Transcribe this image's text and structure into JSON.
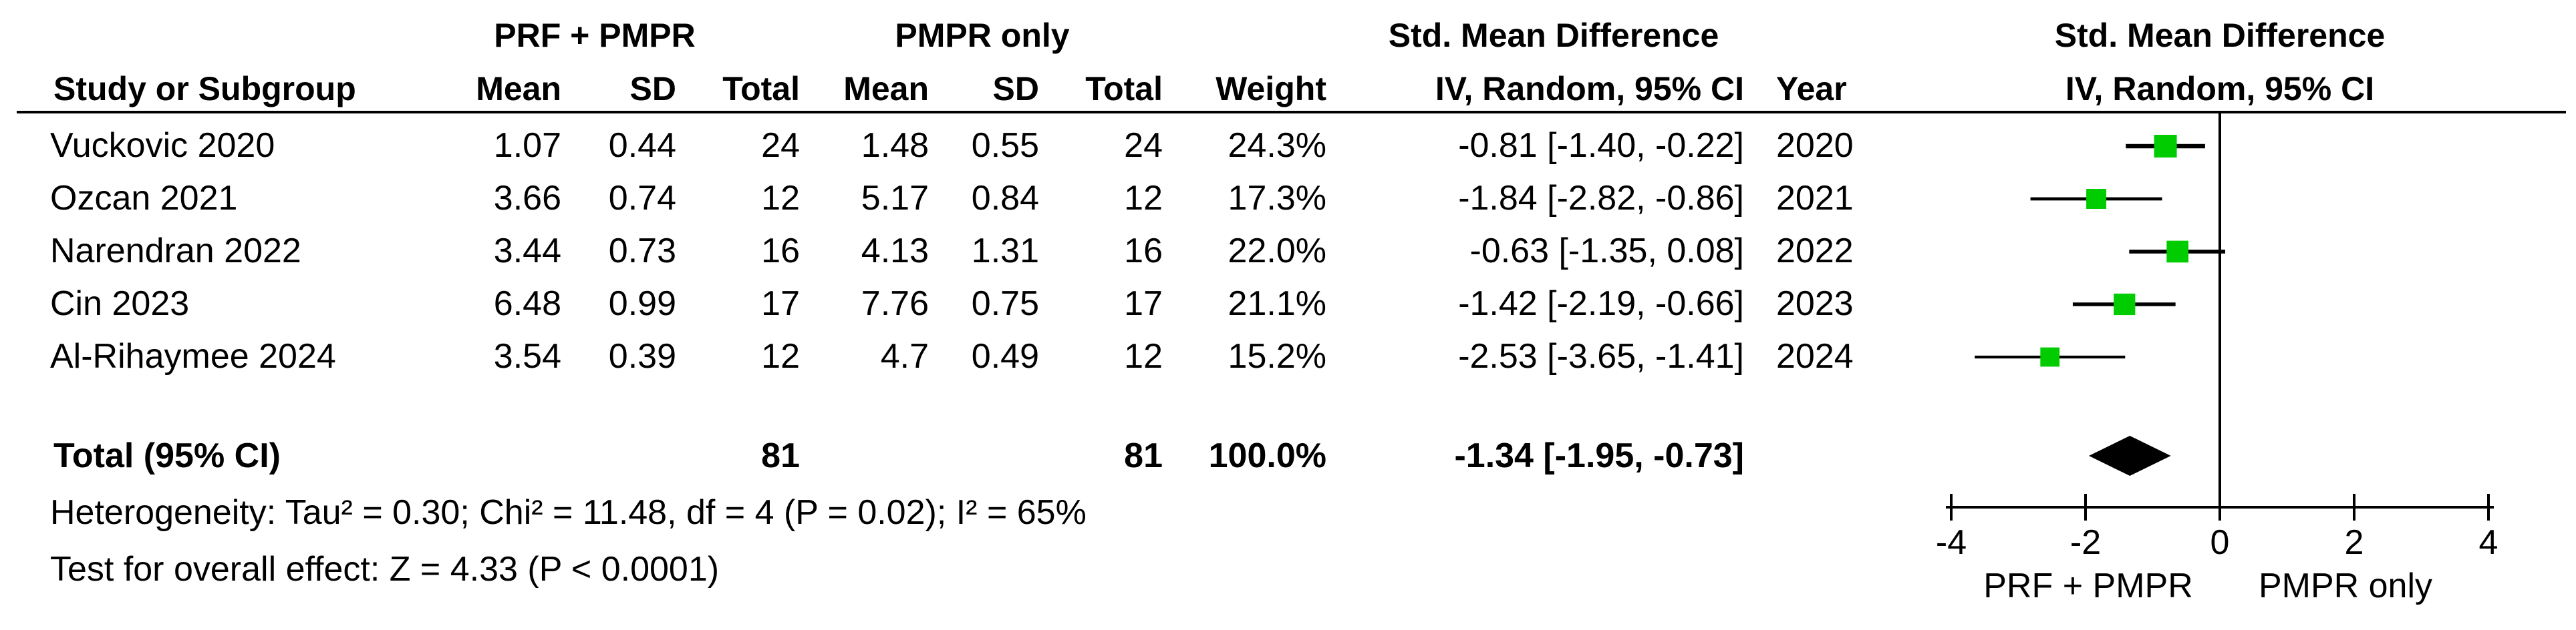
{
  "headers": {
    "group1": "PRF + PMPR",
    "group2": "PMPR only",
    "effect_top": "Std. Mean Difference",
    "study": "Study or Subgroup",
    "mean1": "Mean",
    "sd1": "SD",
    "total1": "Total",
    "mean2": "Mean",
    "sd2": "SD",
    "total2": "Total",
    "weight": "Weight",
    "ci": "IV, Random, 95% CI",
    "year": "Year",
    "plot_top": "Std. Mean Difference",
    "plot_sub": "IV, Random, 95% CI"
  },
  "studies": [
    {
      "name": "Vuckovic 2020",
      "mean1": "1.07",
      "sd1": "0.44",
      "n1": "24",
      "mean2": "1.48",
      "sd2": "0.55",
      "n2": "24",
      "weight": "24.3%",
      "ci": "-0.81 [-1.40, -0.22]",
      "year": "2020"
    },
    {
      "name": "Ozcan 2021",
      "mean1": "3.66",
      "sd1": "0.74",
      "n1": "12",
      "mean2": "5.17",
      "sd2": "0.84",
      "n2": "12",
      "weight": "17.3%",
      "ci": "-1.84 [-2.82, -0.86]",
      "year": "2021"
    },
    {
      "name": "Narendran 2022",
      "mean1": "3.44",
      "sd1": "0.73",
      "n1": "16",
      "mean2": "4.13",
      "sd2": "1.31",
      "n2": "16",
      "weight": "22.0%",
      "ci": "-0.63 [-1.35, 0.08]",
      "year": "2022"
    },
    {
      "name": "Cin 2023",
      "mean1": "6.48",
      "sd1": "0.99",
      "n1": "17",
      "mean2": "7.76",
      "sd2": "0.75",
      "n2": "17",
      "weight": "21.1%",
      "ci": "-1.42 [-2.19, -0.66]",
      "year": "2023"
    },
    {
      "name": "Al-Rihaymee 2024",
      "mean1": "3.54",
      "sd1": "0.39",
      "n1": "12",
      "mean2": "4.7",
      "sd2": "0.49",
      "n2": "12",
      "weight": "15.2%",
      "ci": "-2.53 [-3.65, -1.41]",
      "year": "2024"
    }
  ],
  "total": {
    "label": "Total (95% CI)",
    "n1": "81",
    "n2": "81",
    "weight": "100.0%",
    "ci": "-1.34 [-1.95, -0.73]"
  },
  "footnotes": {
    "heterogeneity": "Heterogeneity: Tau² = 0.30; Chi² = 11.48, df = 4 (P = 0.02); I² = 65%",
    "overall": "Test for overall effect: Z = 4.33 (P < 0.0001)"
  },
  "axis_labels": {
    "left": "PRF + PMPR",
    "right": "PMPR only"
  },
  "colors": {
    "marker": "#00cc00",
    "line": "#000000"
  },
  "chart_data": {
    "type": "forest",
    "measure": "Std. Mean Difference, IV, Random, 95% CI",
    "studies": [
      {
        "name": "Vuckovic 2020",
        "estimate": -0.81,
        "lower": -1.4,
        "upper": -0.22,
        "weight": 24.3
      },
      {
        "name": "Ozcan 2021",
        "estimate": -1.84,
        "lower": -2.82,
        "upper": -0.86,
        "weight": 17.3
      },
      {
        "name": "Narendran 2022",
        "estimate": -0.63,
        "lower": -1.35,
        "upper": 0.08,
        "weight": 22.0
      },
      {
        "name": "Cin 2023",
        "estimate": -1.42,
        "lower": -2.19,
        "upper": -0.66,
        "weight": 21.1
      },
      {
        "name": "Al-Rihaymee 2024",
        "estimate": -2.53,
        "lower": -3.65,
        "upper": -1.41,
        "weight": 15.2
      }
    ],
    "pooled": {
      "estimate": -1.34,
      "lower": -1.95,
      "upper": -0.73
    },
    "xlim": [
      -4,
      4
    ],
    "ticks": [
      -4,
      -2,
      0,
      2,
      4
    ]
  }
}
